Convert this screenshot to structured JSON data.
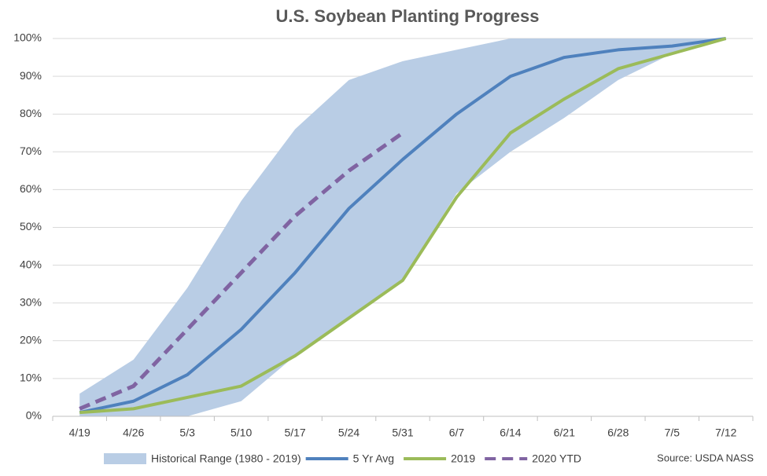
{
  "chart_data": {
    "type": "line",
    "title": "U.S. Soybean Planting Progress",
    "source": "Source: USDA NASS",
    "categories": [
      "4/19",
      "4/26",
      "5/3",
      "5/10",
      "5/17",
      "5/24",
      "5/31",
      "6/7",
      "6/14",
      "6/21",
      "6/28",
      "7/5",
      "7/12"
    ],
    "range": {
      "name": "Historical Range (1980 - 2019)",
      "color": "#b9cde5",
      "low": [
        0,
        0,
        0,
        4,
        16,
        26,
        36,
        59,
        70,
        79,
        89,
        96,
        100
      ],
      "high": [
        6,
        15,
        34,
        57,
        76,
        89,
        94,
        97,
        100,
        100,
        100,
        100,
        100
      ]
    },
    "series": [
      {
        "name": "5 Yr Avg",
        "color": "#4f81bd",
        "dashed": false,
        "values": [
          1,
          4,
          11,
          23,
          38,
          55,
          68,
          80,
          90,
          95,
          97,
          98,
          100
        ]
      },
      {
        "name": "2019",
        "color": "#9bbb59",
        "dashed": false,
        "values": [
          1,
          2,
          5,
          8,
          16,
          26,
          36,
          58,
          75,
          84,
          92,
          96,
          100
        ]
      },
      {
        "name": "2020 YTD",
        "color": "#8064a2",
        "dashed": true,
        "values": [
          2,
          8,
          23,
          38,
          53,
          65,
          75,
          null,
          null,
          null,
          null,
          null,
          null
        ]
      }
    ],
    "ylim": [
      0,
      100
    ],
    "yticks": [
      {
        "value": 0,
        "label": "0%"
      },
      {
        "value": 10,
        "label": "10%"
      },
      {
        "value": 20,
        "label": "20%"
      },
      {
        "value": 30,
        "label": "30%"
      },
      {
        "value": 40,
        "label": "40%"
      },
      {
        "value": 50,
        "label": "50%"
      },
      {
        "value": 60,
        "label": "60%"
      },
      {
        "value": 70,
        "label": "70%"
      },
      {
        "value": 80,
        "label": "80%"
      },
      {
        "value": 90,
        "label": "90%"
      },
      {
        "value": 100,
        "label": "100%"
      }
    ],
    "grid": true
  }
}
